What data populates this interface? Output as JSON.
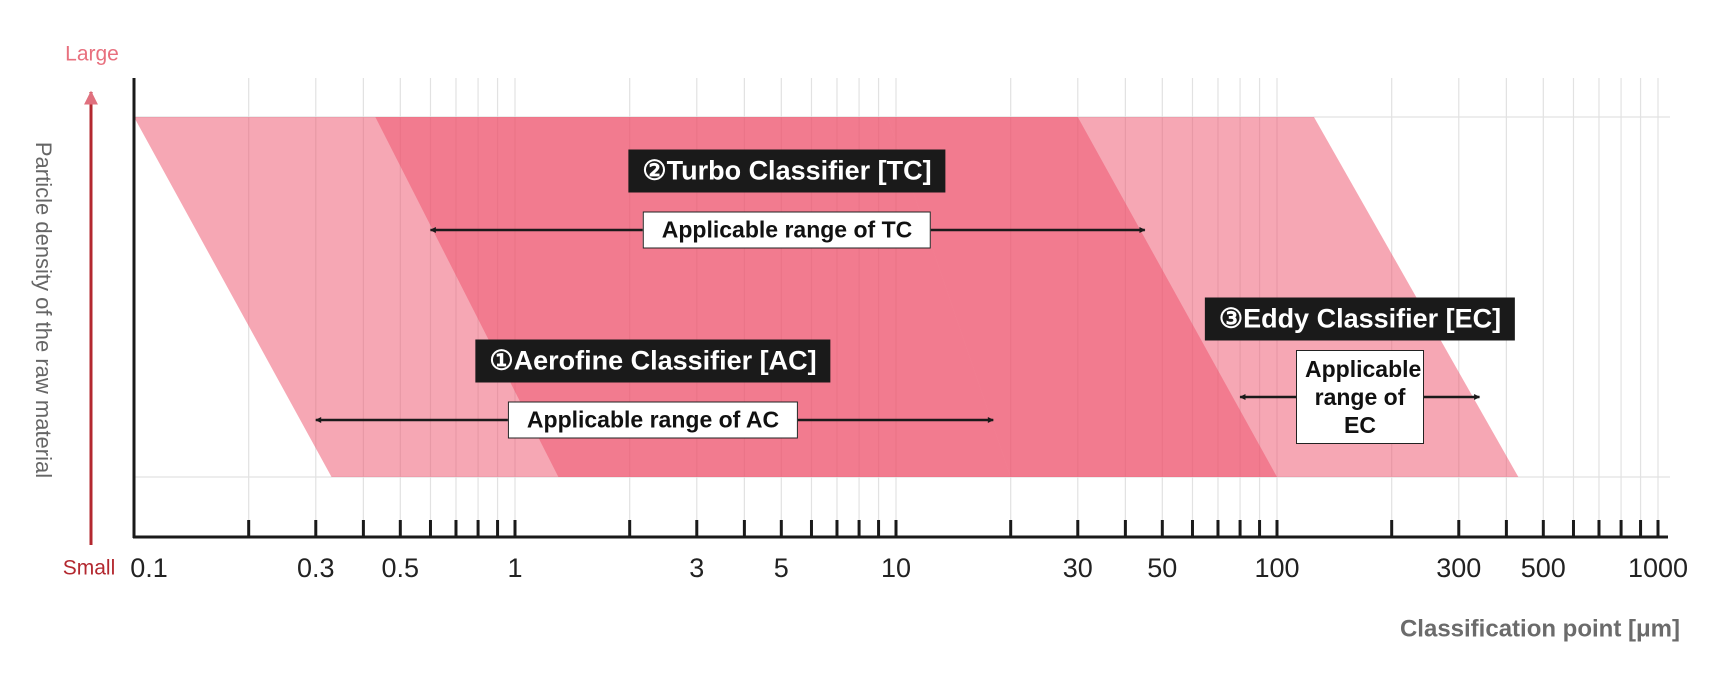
{
  "chart_data": {
    "type": "band",
    "ylabel": "Particle density of the raw material",
    "y_top_label": "Large",
    "y_bottom_label": "Small",
    "xlabel": "Classification point [μm]",
    "log_x": true,
    "grid": true,
    "xlim": [
      0.1,
      1000
    ],
    "xticks": [
      0.1,
      0.3,
      0.5,
      1,
      3,
      5,
      10,
      30,
      50,
      100,
      300,
      500,
      1000
    ],
    "minor_xticks": [
      0.2,
      0.4,
      0.6,
      0.7,
      0.8,
      0.9,
      2,
      4,
      6,
      7,
      8,
      9,
      20,
      40,
      60,
      70,
      80,
      90,
      200,
      400,
      600,
      700,
      800,
      900
    ],
    "series": [
      {
        "name": "①Aerofine Classifier [AC]",
        "color": "#ee4f6a",
        "top": [
          0.1,
          9.5
        ],
        "bottom": [
          0.33,
          20
        ],
        "range_label": "Applicable range of AC",
        "range": [
          0.3,
          18
        ]
      },
      {
        "name": "②Turbo Classifier [TC]",
        "color": "#ee4f6a",
        "top": [
          0.43,
          30
        ],
        "bottom": [
          1.3,
          100
        ],
        "range_label": "Applicable range of TC",
        "range": [
          0.6,
          45
        ]
      },
      {
        "name": "③Eddy Classifier [EC]",
        "color": "#ee4f6a",
        "top": [
          9.5,
          125
        ],
        "bottom": [
          20,
          430
        ],
        "range_label": "Applicable range of EC",
        "range": [
          80,
          340
        ]
      }
    ]
  }
}
